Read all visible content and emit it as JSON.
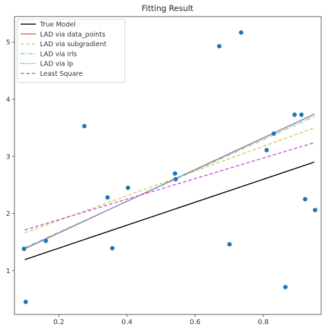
{
  "chart_data": {
    "type": "scatter",
    "title": "Fitting Result",
    "xlabel": "",
    "ylabel": "",
    "xlim": [
      0.07,
      0.97
    ],
    "ylim": [
      0.23,
      5.45
    ],
    "xticks": [
      0.2,
      0.4,
      0.6,
      0.8
    ],
    "xtick_labels": [
      "0.2",
      "0.4",
      "0.6",
      "0.8"
    ],
    "yticks": [
      1,
      2,
      3,
      4,
      5
    ],
    "ytick_labels": [
      "1",
      "2",
      "3",
      "4",
      "5"
    ],
    "grid": false,
    "legend_position": "top-left",
    "points": {
      "color": "#1f77b4",
      "x": [
        0.098,
        0.103,
        0.162,
        0.275,
        0.343,
        0.357,
        0.403,
        0.541,
        0.543,
        0.671,
        0.701,
        0.735,
        0.81,
        0.831,
        0.865,
        0.892,
        0.912,
        0.923,
        0.952
      ],
      "y": [
        1.38,
        0.45,
        1.52,
        3.53,
        2.28,
        1.39,
        2.45,
        2.7,
        2.6,
        4.93,
        1.46,
        5.17,
        3.11,
        3.4,
        0.71,
        3.73,
        3.73,
        2.25,
        2.06
      ]
    },
    "series": [
      {
        "name": "True Model",
        "color": "#000000",
        "dash": "solid",
        "x": [
          0.1,
          0.95
        ],
        "y": [
          1.19,
          2.9
        ]
      },
      {
        "name": "LAD via data_points",
        "color": "#e06666",
        "dash": "solid",
        "x": [
          0.1,
          0.95
        ],
        "y": [
          1.38,
          3.74
        ]
      },
      {
        "name": "LAD via subgradient",
        "color": "#c9d45c",
        "dash": "dashed",
        "x": [
          0.1,
          0.95
        ],
        "y": [
          1.66,
          3.5
        ]
      },
      {
        "name": "LAD via irls",
        "color": "#66d9b0",
        "dash": "dashdot",
        "x": [
          0.1,
          0.95
        ],
        "y": [
          1.4,
          3.7
        ]
      },
      {
        "name": "LAD via lp",
        "color": "#6a7fe0",
        "dash": "dotted",
        "x": [
          0.1,
          0.95
        ],
        "y": [
          1.38,
          3.74
        ]
      },
      {
        "name": "Least Square",
        "color": "#cc55dd",
        "dash": "dashed",
        "x": [
          0.1,
          0.95
        ],
        "y": [
          1.71,
          3.24
        ]
      }
    ]
  }
}
